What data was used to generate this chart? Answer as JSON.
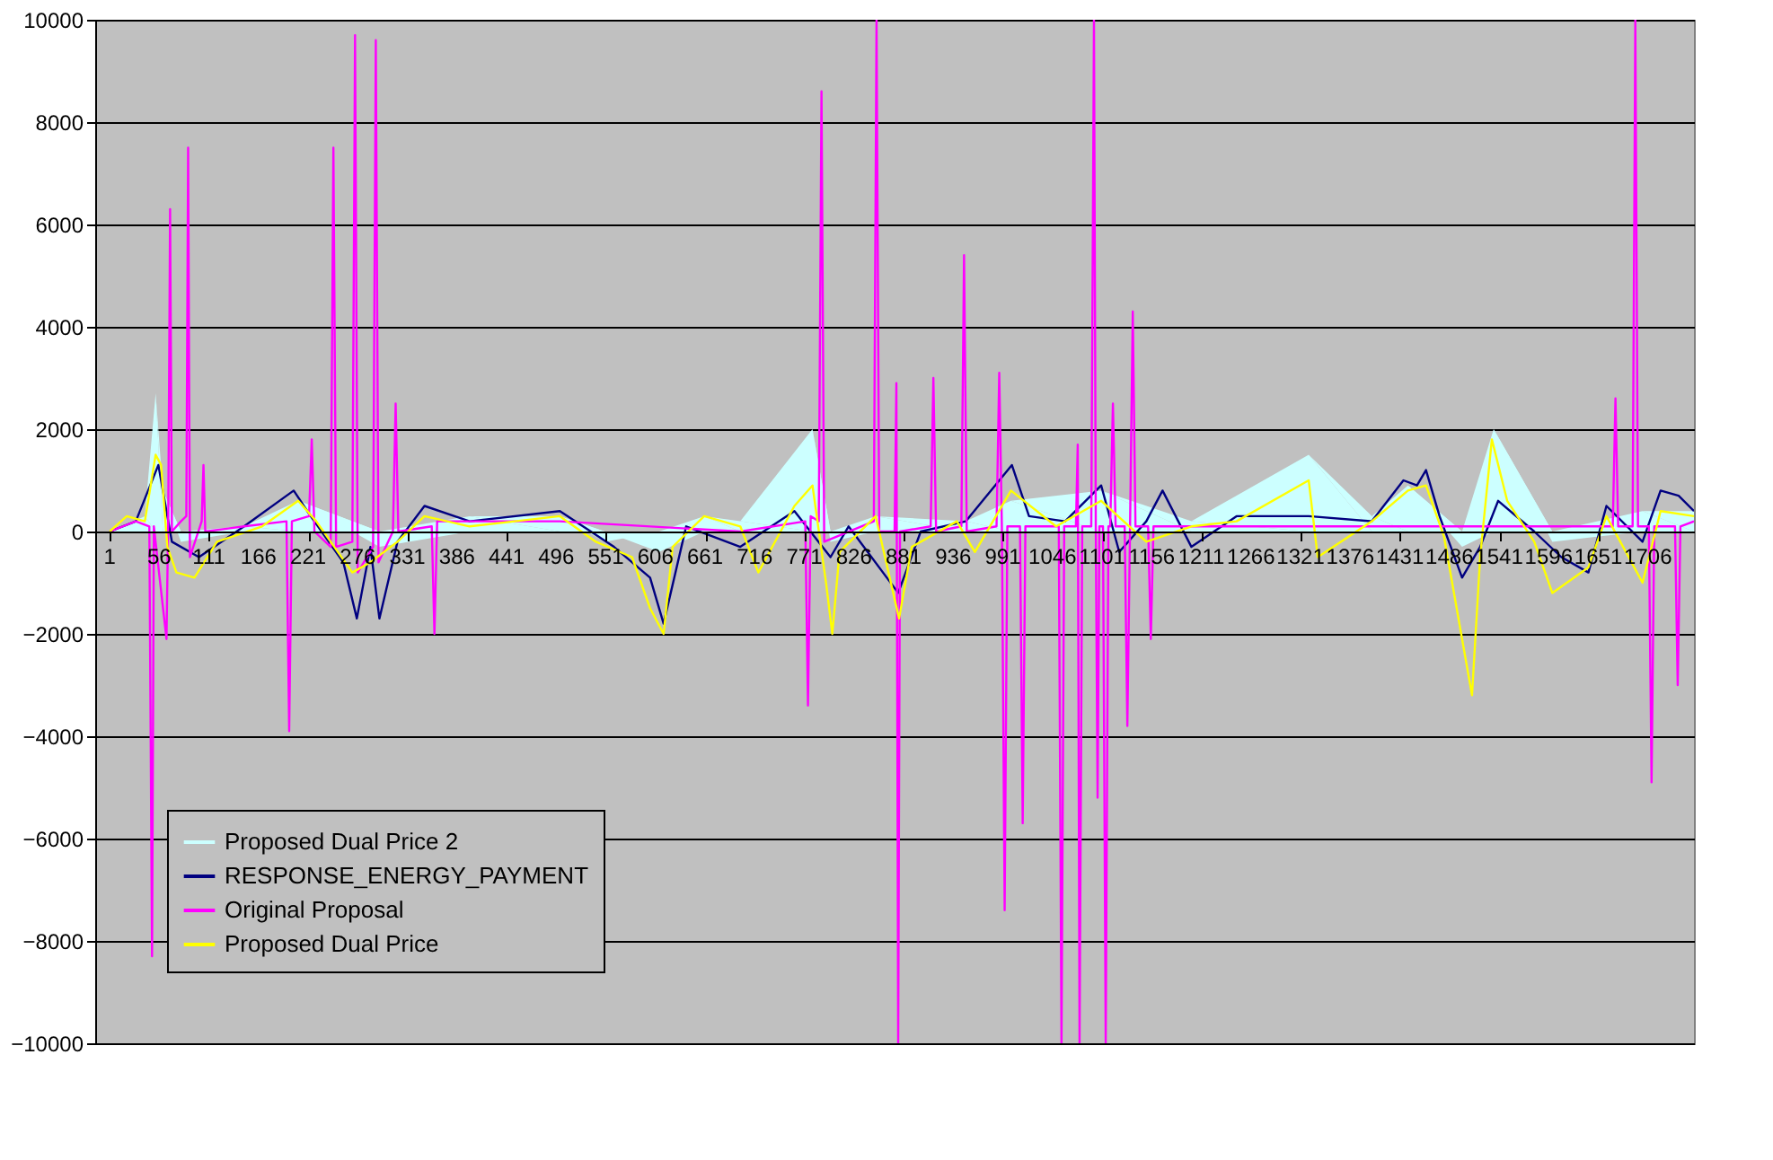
{
  "chart_data": {
    "type": "line",
    "xlim": [
      -15,
      1757
    ],
    "xticks": [
      1,
      56,
      111,
      166,
      221,
      276,
      331,
      386,
      441,
      496,
      551,
      606,
      661,
      716,
      771,
      826,
      881,
      936,
      991,
      1046,
      1101,
      1156,
      1211,
      1266,
      1321,
      1376,
      1431,
      1486,
      1541,
      1596,
      1651,
      1706
    ],
    "ylim": [
      -10000,
      10000
    ],
    "yticks": [
      -10000,
      -8000,
      -6000,
      -4000,
      -2000,
      0,
      2000,
      4000,
      6000,
      8000,
      10000
    ],
    "grid": "y",
    "legend": "bottom left",
    "series": [
      {
        "name": "Proposed Dual Price 2",
        "type": "area",
        "color": "#ccffff",
        "x": [
          1,
          40,
          52,
          60,
          80,
          150,
          210,
          300,
          400,
          500,
          550,
          610,
          660,
          700,
          780,
          800,
          850,
          950,
          1000,
          1100,
          1200,
          1330,
          1400,
          1440,
          1500,
          1535,
          1600,
          1700,
          1757
        ],
        "values": [
          0,
          300,
          2700,
          800,
          -200,
          100,
          600,
          -300,
          300,
          300,
          -200,
          -400,
          300,
          200,
          2000,
          -200,
          300,
          200,
          600,
          800,
          200,
          1500,
          300,
          900,
          -300,
          2000,
          -200,
          400,
          400
        ]
      },
      {
        "name": "RESPONSE_ENERGY_PAYMENT",
        "type": "line",
        "color": "#000080",
        "x": [
          1,
          30,
          55,
          70,
          100,
          150,
          205,
          220,
          260,
          275,
          290,
          300,
          320,
          350,
          400,
          500,
          560,
          600,
          615,
          640,
          700,
          760,
          800,
          820,
          875,
          900,
          950,
          1001,
          1020,
          1060,
          1100,
          1120,
          1150,
          1168,
          1200,
          1250,
          1330,
          1400,
          1435,
          1450,
          1460,
          1475,
          1500,
          1520,
          1540,
          1580,
          1610,
          1640,
          1660,
          1700,
          1720,
          1740,
          1757
        ],
        "values": [
          0,
          200,
          1300,
          -200,
          -500,
          100,
          800,
          400,
          -600,
          -1700,
          -300,
          -1700,
          -200,
          500,
          200,
          400,
          -300,
          -900,
          -1800,
          100,
          -300,
          400,
          -500,
          100,
          -1200,
          0,
          200,
          1300,
          300,
          200,
          900,
          -400,
          200,
          800,
          -300,
          300,
          300,
          200,
          1000,
          900,
          1200,
          300,
          -900,
          -300,
          600,
          0,
          -500,
          -800,
          500,
          -200,
          800,
          700,
          400
        ]
      },
      {
        "name": "Original Proposal",
        "type": "line",
        "color": "#ff00ff",
        "x": [
          1,
          30,
          45,
          48,
          50,
          64,
          66,
          68,
          70,
          80,
          86,
          88,
          90,
          103,
          105,
          107,
          150,
          197,
          200,
          203,
          222,
          225,
          228,
          246,
          249,
          252,
          270,
          273,
          276,
          293,
          296,
          299,
          315,
          318,
          321,
          358,
          361,
          364,
          500,
          700,
          772,
          775,
          778,
          787,
          790,
          793,
          848,
          851,
          854,
          871,
          873,
          875,
          877,
          911,
          914,
          917,
          945,
          948,
          951,
          984,
          987,
          990,
          993,
          996,
          1010,
          1013,
          1016,
          1053,
          1056,
          1059,
          1072,
          1074,
          1076,
          1079,
          1089,
          1092,
          1094,
          1096,
          1098,
          1102,
          1105,
          1108,
          1110,
          1113,
          1116,
          1126,
          1129,
          1132,
          1135,
          1138,
          1152,
          1155,
          1158,
          1400,
          1667,
          1670,
          1673,
          1689,
          1692,
          1695,
          1707,
          1710,
          1713,
          1736,
          1739,
          1742,
          1757
        ],
        "values": [
          0,
          200,
          100,
          -8300,
          100,
          -2100,
          300,
          6300,
          0,
          200,
          300,
          7500,
          -500,
          200,
          1300,
          0,
          100,
          200,
          -3900,
          200,
          300,
          1800,
          0,
          -300,
          7500,
          -300,
          -200,
          9700,
          -800,
          -300,
          9600,
          -600,
          0,
          2500,
          0,
          100,
          -2000,
          200,
          200,
          0,
          200,
          -3400,
          300,
          200,
          8600,
          -200,
          200,
          10000,
          0,
          0,
          2900,
          -10000,
          0,
          100,
          3000,
          0,
          100,
          5400,
          0,
          100,
          3100,
          0,
          -7400,
          100,
          100,
          -5700,
          100,
          100,
          -10000,
          100,
          100,
          1700,
          -10000,
          100,
          100,
          10000,
          100,
          -5200,
          100,
          100,
          -10000,
          100,
          100,
          2500,
          100,
          100,
          -3800,
          100,
          4300,
          100,
          100,
          -2100,
          100,
          100,
          100,
          2600,
          100,
          100,
          10000,
          100,
          100,
          -4900,
          100,
          100,
          -3000,
          100,
          200
        ]
      },
      {
        "name": "Proposed Dual Price",
        "type": "line",
        "color": "#ffff00",
        "x": [
          1,
          20,
          40,
          52,
          58,
          65,
          75,
          95,
          120,
          170,
          210,
          230,
          250,
          270,
          290,
          320,
          350,
          400,
          450,
          500,
          540,
          580,
          600,
          615,
          625,
          660,
          700,
          720,
          760,
          780,
          795,
          802,
          810,
          850,
          876,
          890,
          940,
          960,
          1000,
          1050,
          1100,
          1150,
          1200,
          1250,
          1330,
          1340,
          1400,
          1440,
          1460,
          1480,
          1511,
          1520,
          1533,
          1550,
          1580,
          1600,
          1640,
          1660,
          1700,
          1720,
          1757
        ],
        "values": [
          0,
          300,
          200,
          1500,
          1300,
          -300,
          -800,
          -900,
          -200,
          100,
          600,
          200,
          -300,
          -800,
          -600,
          -200,
          300,
          100,
          200,
          300,
          -200,
          -500,
          -1500,
          -2000,
          -300,
          300,
          100,
          -800,
          500,
          900,
          -1000,
          -2000,
          -400,
          300,
          -1700,
          -300,
          200,
          -400,
          800,
          100,
          600,
          -200,
          100,
          200,
          1000,
          -500,
          200,
          800,
          900,
          -100,
          -3200,
          -500,
          1800,
          600,
          -200,
          -1200,
          -700,
          300,
          -1000,
          400,
          300
        ]
      }
    ]
  }
}
